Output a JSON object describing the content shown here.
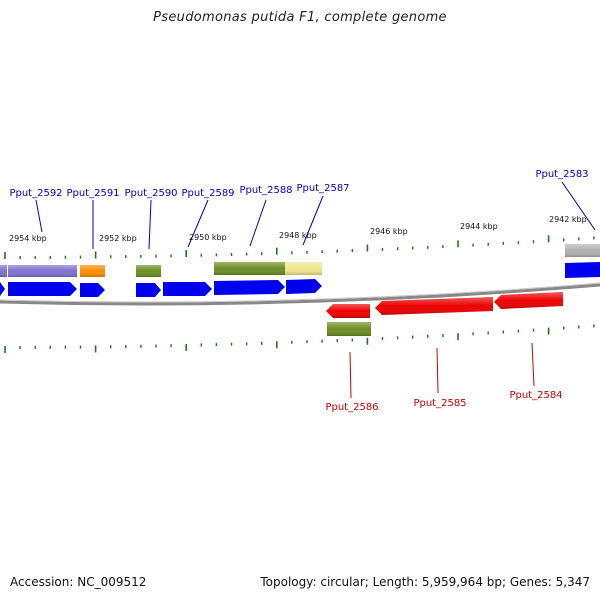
{
  "title": "Pseudomonas putida F1, complete genome",
  "footer": {
    "accession": "Accession: NC_009512",
    "summary": "Topology: circular; Length: 5,959,964 bp; Genes: 5,347"
  },
  "scale_labels": [
    "2954 kbp",
    "2952 kbp",
    "2950 kbp",
    "2948 kbp",
    "2946 kbp",
    "2944 kbp",
    "2942 kbp"
  ],
  "gene_labels_top": [
    "Pput_2592",
    "Pput_2591",
    "Pput_2590",
    "Pput_2589",
    "Pput_2588",
    "Pput_2587",
    "Pput_2583"
  ],
  "gene_labels_bottom": [
    "Pput_2586",
    "Pput_2585",
    "Pput_2584"
  ],
  "colors": {
    "label_forward": "#0000cc",
    "label_reverse": "#cc0000",
    "backbone": "#888888",
    "tick": "#1a7a1a",
    "cds_forward": "#0000ee",
    "cds_reverse": "#ee0000",
    "cog_purple": "#8070d0",
    "cog_orange": "#ff8c00",
    "cog_olive": "#6b8e23",
    "cog_khaki": "#f0e68c",
    "cog_grey": "#b0b0b0"
  }
}
